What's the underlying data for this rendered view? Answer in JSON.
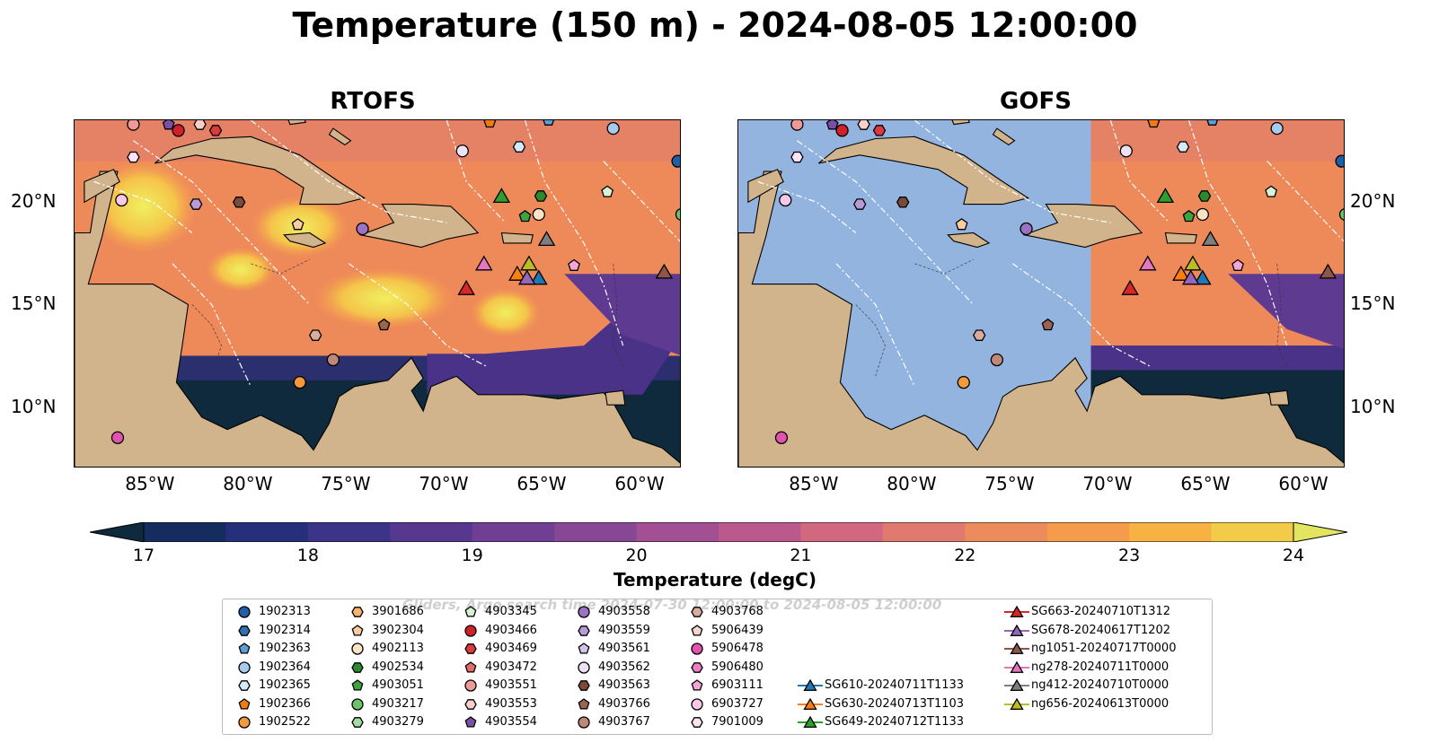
{
  "title": "Temperature (150 m) - 2024-08-05 12:00:00",
  "panels": [
    {
      "title": "RTOFS"
    },
    {
      "title": "GOFS"
    }
  ],
  "lon_labels": [
    "85°W",
    "80°W",
    "75°W",
    "70°W",
    "65°W",
    "60°W"
  ],
  "lat_labels": [
    "20°N",
    "15°N",
    "10°N"
  ],
  "colorbar": {
    "label": "Temperature (degC)",
    "ticks": [
      "17",
      "18",
      "19",
      "20",
      "21",
      "22",
      "23",
      "24"
    ],
    "colors": [
      "#0f2a3d",
      "#152d5e",
      "#26307a",
      "#3b3488",
      "#57388f",
      "#703f93",
      "#884795",
      "#a24f94",
      "#bb598d",
      "#d16880",
      "#e07a6f",
      "#ec8c5d",
      "#f59c4c",
      "#f8b143",
      "#f2cc48",
      "#e3e560"
    ]
  },
  "legend": {
    "watermark": "Gliders, Argo search time 2024-07-30 12:00:00 to 2024-08-05 12:00:00",
    "items": [
      {
        "label": "1902313",
        "marker": "circle",
        "color": "#1f5fa8"
      },
      {
        "label": "1902314",
        "marker": "hexagon",
        "color": "#2e6fb5"
      },
      {
        "label": "1902363",
        "marker": "pentagon",
        "color": "#5a9fd8"
      },
      {
        "label": "1902364",
        "marker": "circle",
        "color": "#a7cbed"
      },
      {
        "label": "1902365",
        "marker": "hexagon",
        "color": "#d6e9f8"
      },
      {
        "label": "1902366",
        "marker": "pentagon",
        "color": "#ef7d14"
      },
      {
        "label": "1902522",
        "marker": "circle",
        "color": "#f59a3c"
      },
      {
        "label": "3901686",
        "marker": "hexagon",
        "color": "#f7b66b"
      },
      {
        "label": "3902304",
        "marker": "pentagon",
        "color": "#f9cda0"
      },
      {
        "label": "4902113",
        "marker": "circle",
        "color": "#fce3c8"
      },
      {
        "label": "4902534",
        "marker": "hexagon",
        "color": "#2b8a2b"
      },
      {
        "label": "4903051",
        "marker": "pentagon",
        "color": "#3fa33f"
      },
      {
        "label": "4903217",
        "marker": "circle",
        "color": "#6bc36b"
      },
      {
        "label": "4903279",
        "marker": "hexagon",
        "color": "#a3dca3"
      },
      {
        "label": "4903345",
        "marker": "pentagon",
        "color": "#d7f2d2"
      },
      {
        "label": "4903466",
        "marker": "circle",
        "color": "#d0202a"
      },
      {
        "label": "4903469",
        "marker": "hexagon",
        "color": "#dc3a3f"
      },
      {
        "label": "4903472",
        "marker": "pentagon",
        "color": "#e66a6a"
      },
      {
        "label": "4903551",
        "marker": "circle",
        "color": "#f09a98"
      },
      {
        "label": "4903553",
        "marker": "hexagon",
        "color": "#f9cfcc"
      },
      {
        "label": "4903554",
        "marker": "pentagon",
        "color": "#7a4fa8"
      },
      {
        "label": "4903558",
        "marker": "circle",
        "color": "#9a73c2"
      },
      {
        "label": "4903559",
        "marker": "hexagon",
        "color": "#b89ad6"
      },
      {
        "label": "4903561",
        "marker": "pentagon",
        "color": "#d4c2e8"
      },
      {
        "label": "4903562",
        "marker": "circle",
        "color": "#ece2f4"
      },
      {
        "label": "4903563",
        "marker": "hexagon",
        "color": "#7a4a3a"
      },
      {
        "label": "4903766",
        "marker": "pentagon",
        "color": "#9a6452"
      },
      {
        "label": "4903767",
        "marker": "circle",
        "color": "#c08878"
      },
      {
        "label": "4903768",
        "marker": "hexagon",
        "color": "#d9ad9e"
      },
      {
        "label": "5906439",
        "marker": "pentagon",
        "color": "#f0d6cc"
      },
      {
        "label": "5906478",
        "marker": "circle",
        "color": "#e054b0"
      },
      {
        "label": "5906480",
        "marker": "hexagon",
        "color": "#ec7ec6"
      },
      {
        "label": "6903111",
        "marker": "pentagon",
        "color": "#f3a6d8"
      },
      {
        "label": "6903727",
        "marker": "circle",
        "color": "#f8c8e8"
      },
      {
        "label": "7901009",
        "marker": "hexagon",
        "color": "#fce4f4"
      },
      {
        "label": "SG610-20240711T1133",
        "marker": "triangle",
        "color": "#1f77b4"
      },
      {
        "label": "SG630-20240713T1103",
        "marker": "triangle",
        "color": "#ff7f0e"
      },
      {
        "label": "SG649-20240712T1133",
        "marker": "triangle",
        "color": "#2ca02c"
      },
      {
        "label": "SG663-20240710T1312",
        "marker": "triangle",
        "color": "#d62728"
      },
      {
        "label": "SG678-20240617T1202",
        "marker": "triangle",
        "color": "#9467bd"
      },
      {
        "label": "ng1051-20240717T0000",
        "marker": "triangle",
        "color": "#8c564b"
      },
      {
        "label": "ng278-20240711T0000",
        "marker": "triangle",
        "color": "#e377c2"
      },
      {
        "label": "ng412-20240710T0000",
        "marker": "triangle",
        "color": "#7f7f7f"
      },
      {
        "label": "ng656-20240613T0000",
        "marker": "triangle",
        "color": "#bcbd22"
      }
    ]
  },
  "map_data": {
    "lon_range": [
      -89,
      -58
    ],
    "lat_range": [
      7,
      24
    ],
    "land_color": "#d2b48c",
    "ocean_color": "#94b4e0",
    "argo_floats": [
      {
        "id": "1902313",
        "lon": -58.2,
        "lat": 22.0
      },
      {
        "id": "1902364",
        "lon": -61.5,
        "lat": 23.6
      },
      {
        "id": "1902363",
        "lon": -64.8,
        "lat": 24.0
      },
      {
        "id": "1902365",
        "lon": -66.3,
        "lat": 22.7
      },
      {
        "id": "1902366",
        "lon": -67.8,
        "lat": 23.9
      },
      {
        "id": "1902522",
        "lon": -77.5,
        "lat": 11.2
      },
      {
        "id": "4903345",
        "lon": -61.8,
        "lat": 20.5
      },
      {
        "id": "4902113",
        "lon": -65.3,
        "lat": 19.4
      },
      {
        "id": "4902534",
        "lon": -65.2,
        "lat": 20.3
      },
      {
        "id": "4903051",
        "lon": -66.0,
        "lat": 19.3
      },
      {
        "id": "4903217",
        "lon": -58.0,
        "lat": 19.4
      },
      {
        "id": "4903466",
        "lon": -83.7,
        "lat": 23.5
      },
      {
        "id": "4903469",
        "lon": -81.8,
        "lat": 23.5
      },
      {
        "id": "4903551",
        "lon": -86.0,
        "lat": 23.8
      },
      {
        "id": "4903553",
        "lon": -82.6,
        "lat": 23.8
      },
      {
        "id": "4903554",
        "lon": -84.2,
        "lat": 23.8
      },
      {
        "id": "4903558",
        "lon": -74.3,
        "lat": 18.7
      },
      {
        "id": "4903559",
        "lon": -82.8,
        "lat": 19.9
      },
      {
        "id": "4903562",
        "lon": -69.2,
        "lat": 22.5
      },
      {
        "id": "4903563",
        "lon": -80.6,
        "lat": 20.0
      },
      {
        "id": "4903766",
        "lon": -73.2,
        "lat": 14.0
      },
      {
        "id": "4903767",
        "lon": -75.8,
        "lat": 12.3
      },
      {
        "id": "4903768",
        "lon": -76.7,
        "lat": 13.5
      },
      {
        "id": "5906478",
        "lon": -86.8,
        "lat": 8.5
      },
      {
        "id": "6903111",
        "lon": -63.5,
        "lat": 16.9
      },
      {
        "id": "6903727",
        "lon": -86.6,
        "lat": 20.1
      },
      {
        "id": "7901009",
        "lon": -86.0,
        "lat": 22.2
      },
      {
        "id": "3902304",
        "lon": -77.6,
        "lat": 18.9
      }
    ],
    "gliders": [
      {
        "id": "SG610-20240711T1133",
        "lon": -65.3,
        "lat": 16.3
      },
      {
        "id": "SG630-20240713T1103",
        "lon": -66.4,
        "lat": 16.5
      },
      {
        "id": "SG649-20240712T1133",
        "lon": -67.2,
        "lat": 20.3
      },
      {
        "id": "SG663-20240710T1312",
        "lon": -69.0,
        "lat": 15.8
      },
      {
        "id": "SG678-20240617T1202",
        "lon": -65.9,
        "lat": 16.3
      },
      {
        "id": "ng1051-20240717T0000",
        "lon": -58.9,
        "lat": 16.6
      },
      {
        "id": "ng278-20240711T0000",
        "lon": -68.1,
        "lat": 17.0
      },
      {
        "id": "ng412-20240710T0000",
        "lon": -64.9,
        "lat": 18.2
      },
      {
        "id": "ng656-20240613T0000",
        "lon": -65.8,
        "lat": 17.0
      }
    ]
  }
}
